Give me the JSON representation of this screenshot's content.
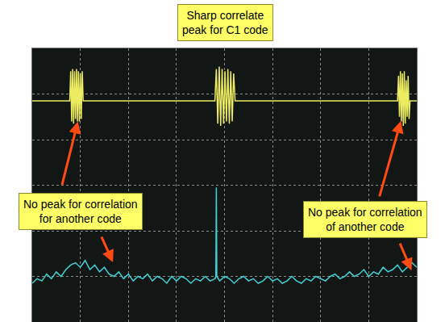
{
  "chart_data": {
    "type": "line",
    "title": "Sharp correlate\npeak for C1 code",
    "xlim": [
      0,
      8
    ],
    "ylim": [
      0,
      6
    ],
    "xticks": [
      0,
      1,
      2,
      3,
      4,
      5,
      6,
      7,
      8
    ],
    "yticks": [
      0,
      1,
      2,
      3,
      4,
      5,
      6
    ],
    "grid": true,
    "tick_labels": false,
    "annotations": [
      {
        "text": "No peak for correlation\nfor another code"
      },
      {
        "text": "No peak for correlation\nof another code"
      }
    ],
    "series": [
      {
        "color": "#ecec62",
        "x": [
          0,
          0.78,
          0.8,
          0.82,
          0.84,
          0.86,
          0.88,
          0.9,
          0.92,
          0.94,
          0.96,
          0.98,
          1.0,
          1.02,
          1.04,
          1.06,
          3.8,
          3.83,
          3.86,
          3.89,
          3.92,
          3.95,
          3.98,
          4.01,
          4.04,
          4.07,
          4.1,
          4.13,
          4.16,
          4.19,
          4.22,
          7.6,
          7.62,
          7.64,
          7.66,
          7.68,
          7.7,
          7.72,
          7.74,
          7.76,
          7.78,
          7.8,
          7.82,
          7.84,
          7.86,
          8
        ],
        "values": [
          4.85,
          4.85,
          5.5,
          4.4,
          5.55,
          4.35,
          5.5,
          4.45,
          5.55,
          4.4,
          5.5,
          4.4,
          5.45,
          4.45,
          5.5,
          4.85,
          4.85,
          5.55,
          4.35,
          5.6,
          4.3,
          5.55,
          4.35,
          5.5,
          4.4,
          5.55,
          4.35,
          5.5,
          4.4,
          5.45,
          4.85,
          4.85,
          5.4,
          4.5,
          5.5,
          4.4,
          5.45,
          4.3,
          5.5,
          4.35,
          5.3,
          4.5,
          5.4,
          4.45,
          4.85,
          4.85
        ]
      },
      {
        "color": "#40d2d6",
        "x": [
          0,
          0.1,
          0.2,
          0.3,
          0.4,
          0.5,
          0.6,
          0.7,
          0.8,
          0.9,
          1.0,
          1.1,
          1.2,
          1.3,
          1.4,
          1.5,
          1.6,
          1.7,
          1.8,
          1.9,
          2.0,
          2.1,
          2.2,
          2.3,
          2.4,
          2.5,
          2.6,
          2.7,
          2.8,
          2.9,
          3.0,
          3.1,
          3.2,
          3.3,
          3.4,
          3.5,
          3.6,
          3.7,
          3.8,
          3.82,
          3.83,
          3.84,
          3.9,
          4.0,
          4.1,
          4.2,
          4.3,
          4.4,
          4.5,
          4.6,
          4.7,
          4.8,
          4.9,
          5.0,
          5.1,
          5.2,
          5.3,
          5.4,
          5.5,
          5.6,
          5.7,
          5.8,
          5.9,
          6.0,
          6.1,
          6.2,
          6.3,
          6.4,
          6.5,
          6.6,
          6.7,
          6.8,
          6.9,
          7.0,
          7.1,
          7.2,
          7.3,
          7.4,
          7.5,
          7.6,
          7.7,
          7.8,
          7.9,
          8.0
        ],
        "values": [
          0.85,
          0.95,
          0.9,
          1.05,
          0.95,
          1.1,
          1.0,
          1.15,
          1.25,
          1.3,
          1.2,
          1.35,
          1.15,
          1.25,
          1.1,
          1.2,
          1.05,
          1.0,
          1.1,
          0.95,
          1.05,
          0.9,
          1.0,
          0.95,
          1.05,
          0.9,
          1.0,
          0.95,
          0.85,
          1.0,
          0.9,
          1.0,
          0.95,
          0.85,
          0.95,
          0.9,
          1.0,
          0.9,
          0.95,
          1.0,
          2.95,
          1.0,
          0.9,
          1.0,
          0.95,
          0.85,
          0.95,
          1.0,
          0.9,
          0.95,
          0.85,
          0.9,
          1.0,
          0.9,
          0.95,
          0.85,
          0.9,
          1.0,
          0.9,
          0.85,
          0.95,
          0.9,
          1.0,
          0.95,
          0.9,
          1.0,
          1.05,
          0.95,
          1.0,
          1.1,
          1.0,
          1.05,
          1.15,
          1.0,
          1.1,
          1.05,
          1.2,
          1.1,
          1.15,
          1.25,
          1.1,
          1.2,
          1.3,
          1.2
        ]
      }
    ]
  }
}
